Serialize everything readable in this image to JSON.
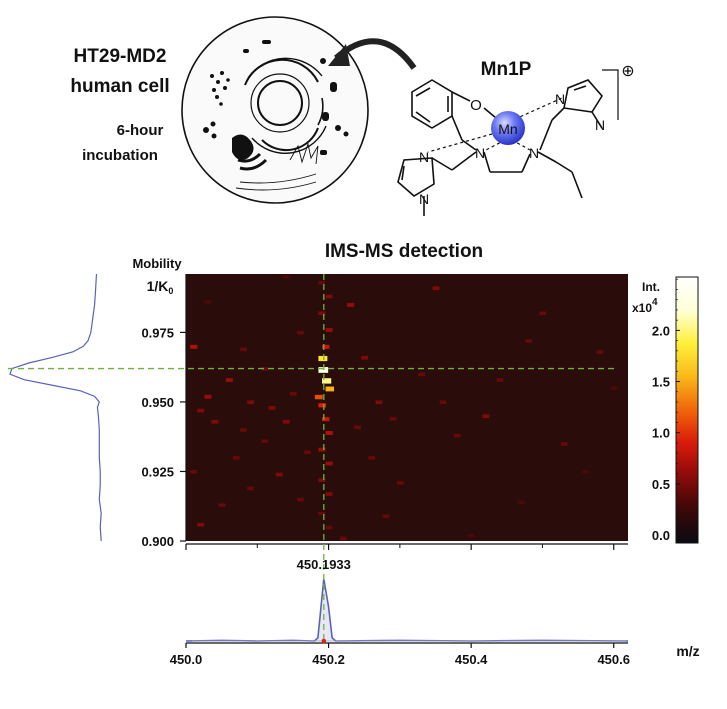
{
  "top": {
    "cell_title_line1": "HT29-MD2",
    "cell_title_line2": "human cell",
    "incubation_line1": "6-hour",
    "incubation_line2": "incubation",
    "molecule_name": "Mn1P",
    "charge_symbol": "⊕",
    "metal_label": "Mn",
    "atom_O": "O",
    "atom_N": "N"
  },
  "chart_data": {
    "type": "heatmap",
    "title": "IMS-MS detection",
    "xlabel": "m/z",
    "ylabel_line1": "Mobility",
    "ylabel_line2_main": "1/K",
    "ylabel_line2_sub": "0",
    "xlim": [
      450.0,
      450.62
    ],
    "ylim": [
      0.9,
      0.996
    ],
    "x_ticks": [
      450.0,
      450.2,
      450.4,
      450.6
    ],
    "x_tick_labels": [
      "450.0",
      "450.2",
      "450.4",
      "450.6"
    ],
    "y_ticks": [
      0.9,
      0.925,
      0.95,
      0.975
    ],
    "y_tick_labels": [
      "0.900",
      "0.925",
      "0.950",
      "0.975"
    ],
    "peak_mz": 450.1933,
    "peak_label": "450.1933",
    "peak_mobility": 0.962,
    "colorbar": {
      "title": "Int.",
      "scale_label": "x10",
      "scale_exponent": "4",
      "ticks": [
        0.0,
        0.5,
        1.0,
        1.5,
        2.0
      ],
      "tick_labels": [
        "0.0",
        "0.5",
        "1.0",
        "1.5",
        "2.0"
      ],
      "max": 2.6,
      "colors": [
        "#0a0a12",
        "#3a0808",
        "#8a0a0a",
        "#d81a0a",
        "#f0660a",
        "#f8b81a",
        "#fff03a",
        "#ffffd8",
        "#ffffff"
      ]
    },
    "background_color": "#2a0c0a",
    "guide_color": "#6fb33a",
    "profile_color": "#5a62b8",
    "mobility_profile": [
      [
        0.9,
        0.03
      ],
      [
        0.905,
        0.04
      ],
      [
        0.91,
        0.03
      ],
      [
        0.915,
        0.05
      ],
      [
        0.92,
        0.04
      ],
      [
        0.925,
        0.04
      ],
      [
        0.93,
        0.05
      ],
      [
        0.935,
        0.05
      ],
      [
        0.94,
        0.05
      ],
      [
        0.945,
        0.06
      ],
      [
        0.948,
        0.07
      ],
      [
        0.95,
        0.05
      ],
      [
        0.952,
        0.1
      ],
      [
        0.954,
        0.25
      ],
      [
        0.956,
        0.55
      ],
      [
        0.958,
        0.85
      ],
      [
        0.96,
        1.0
      ],
      [
        0.962,
        0.98
      ],
      [
        0.964,
        0.8
      ],
      [
        0.966,
        0.55
      ],
      [
        0.968,
        0.33
      ],
      [
        0.97,
        0.22
      ],
      [
        0.972,
        0.17
      ],
      [
        0.975,
        0.14
      ],
      [
        0.98,
        0.12
      ],
      [
        0.985,
        0.1
      ],
      [
        0.99,
        0.09
      ],
      [
        0.996,
        0.08
      ]
    ],
    "mz_profile": [
      [
        450.0,
        0.0
      ],
      [
        450.05,
        0.01
      ],
      [
        450.1,
        0.0
      ],
      [
        450.15,
        0.01
      ],
      [
        450.18,
        0.0
      ],
      [
        450.185,
        0.05
      ],
      [
        450.1933,
        1.0
      ],
      [
        450.2,
        0.55
      ],
      [
        450.205,
        0.05
      ],
      [
        450.21,
        0.0
      ],
      [
        450.3,
        0.01
      ],
      [
        450.4,
        0.0
      ],
      [
        450.5,
        0.01
      ],
      [
        450.62,
        0.0
      ]
    ],
    "spots": [
      [
        450.19,
        0.962,
        2.4
      ],
      [
        450.195,
        0.958,
        2.1
      ],
      [
        450.19,
        0.966,
        1.9
      ],
      [
        450.2,
        0.955,
        1.6
      ],
      [
        450.185,
        0.952,
        1.2
      ],
      [
        450.19,
        0.949,
        1.0
      ],
      [
        450.195,
        0.944,
        0.9
      ],
      [
        450.2,
        0.939,
        0.8
      ],
      [
        450.19,
        0.933,
        0.7
      ],
      [
        450.2,
        0.928,
        0.7
      ],
      [
        450.19,
        0.922,
        0.6
      ],
      [
        450.2,
        0.917,
        0.6
      ],
      [
        450.19,
        0.91,
        0.5
      ],
      [
        450.2,
        0.905,
        0.5
      ],
      [
        450.195,
        0.97,
        0.9
      ],
      [
        450.2,
        0.976,
        0.7
      ],
      [
        450.19,
        0.982,
        0.6
      ],
      [
        450.2,
        0.988,
        0.6
      ],
      [
        450.19,
        0.993,
        0.5
      ],
      [
        450.01,
        0.97,
        0.8
      ],
      [
        450.03,
        0.952,
        0.7
      ],
      [
        450.02,
        0.947,
        0.6
      ],
      [
        450.06,
        0.958,
        0.7
      ],
      [
        450.09,
        0.95,
        0.6
      ],
      [
        450.04,
        0.943,
        0.6
      ],
      [
        450.08,
        0.94,
        0.5
      ],
      [
        450.12,
        0.948,
        0.6
      ],
      [
        450.15,
        0.953,
        0.5
      ],
      [
        450.11,
        0.936,
        0.5
      ],
      [
        450.14,
        0.943,
        0.6
      ],
      [
        450.07,
        0.93,
        0.5
      ],
      [
        450.13,
        0.924,
        0.6
      ],
      [
        450.09,
        0.919,
        0.5
      ],
      [
        450.05,
        0.913,
        0.5
      ],
      [
        450.02,
        0.906,
        0.6
      ],
      [
        450.16,
        0.915,
        0.5
      ],
      [
        450.17,
        0.932,
        0.5
      ],
      [
        450.11,
        0.962,
        0.5
      ],
      [
        450.16,
        0.975,
        0.5
      ],
      [
        450.23,
        0.985,
        0.7
      ],
      [
        450.25,
        0.966,
        0.6
      ],
      [
        450.27,
        0.95,
        0.6
      ],
      [
        450.24,
        0.941,
        0.5
      ],
      [
        450.29,
        0.944,
        0.5
      ],
      [
        450.26,
        0.93,
        0.5
      ],
      [
        450.3,
        0.921,
        0.5
      ],
      [
        450.28,
        0.909,
        0.5
      ],
      [
        450.33,
        0.96,
        0.5
      ],
      [
        450.35,
        0.991,
        0.6
      ],
      [
        450.38,
        0.938,
        0.5
      ],
      [
        450.36,
        0.95,
        0.5
      ],
      [
        450.42,
        0.945,
        0.6
      ],
      [
        450.44,
        0.958,
        0.5
      ],
      [
        450.48,
        0.972,
        0.5
      ],
      [
        450.5,
        0.982,
        0.5
      ],
      [
        450.53,
        0.935,
        0.5
      ],
      [
        450.56,
        0.925,
        0.4
      ],
      [
        450.58,
        0.968,
        0.5
      ],
      [
        450.6,
        0.955,
        0.4
      ],
      [
        450.47,
        0.914,
        0.4
      ],
      [
        450.4,
        0.902,
        0.4
      ],
      [
        450.22,
        0.901,
        0.5
      ],
      [
        450.08,
        0.969,
        0.5
      ],
      [
        450.01,
        0.925,
        0.5
      ],
      [
        450.03,
        0.986,
        0.4
      ],
      [
        450.14,
        0.995,
        0.4
      ]
    ]
  }
}
